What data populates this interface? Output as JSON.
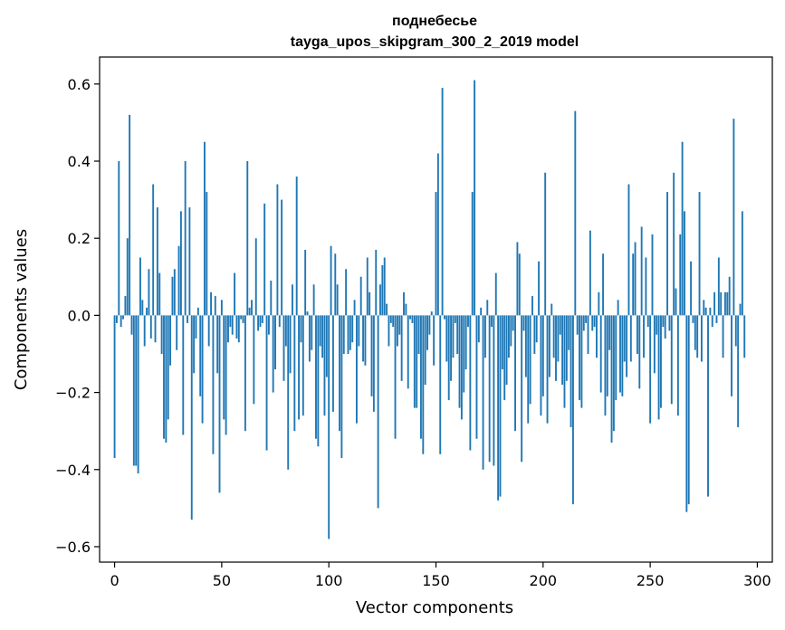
{
  "chart_data": {
    "type": "bar",
    "title_lines": [
      "поднебесье",
      "tayga_upos_skipgram_300_2_2019 model"
    ],
    "xlabel": "Vector components",
    "ylabel": "Components values",
    "xlim": [
      -7,
      307
    ],
    "ylim": [
      -0.64,
      0.67
    ],
    "x_ticks": [
      0,
      50,
      100,
      150,
      200,
      250,
      300
    ],
    "y_ticks": [
      -0.6,
      -0.4,
      -0.2,
      0.0,
      0.2,
      0.4,
      0.6
    ],
    "x_tick_labels": [
      "0",
      "50",
      "100",
      "150",
      "200",
      "250",
      "300"
    ],
    "y_tick_labels": [
      "−0.6",
      "−0.4",
      "−0.2",
      "0.0",
      "0.2",
      "0.4",
      "0.6"
    ],
    "grid": false,
    "bar_color": "#1f77b4",
    "values": [
      -0.37,
      -0.02,
      0.4,
      -0.03,
      -0.01,
      0.05,
      0.2,
      0.52,
      -0.05,
      -0.39,
      -0.39,
      -0.41,
      0.15,
      0.04,
      -0.08,
      0.02,
      0.12,
      -0.06,
      0.34,
      -0.07,
      0.28,
      0.11,
      -0.1,
      -0.32,
      -0.33,
      -0.27,
      -0.13,
      0.1,
      0.12,
      -0.09,
      0.18,
      0.27,
      -0.31,
      0.4,
      -0.02,
      0.28,
      -0.53,
      -0.15,
      -0.06,
      0.02,
      -0.21,
      -0.28,
      0.45,
      0.32,
      -0.08,
      0.06,
      -0.36,
      0.05,
      -0.15,
      -0.46,
      0.04,
      -0.27,
      -0.31,
      -0.07,
      -0.03,
      -0.05,
      0.11,
      -0.06,
      -0.07,
      -0.01,
      -0.02,
      -0.3,
      0.4,
      0.02,
      0.04,
      -0.23,
      0.2,
      -0.04,
      -0.03,
      -0.02,
      0.29,
      -0.35,
      -0.05,
      0.09,
      -0.2,
      -0.14,
      0.34,
      -0.03,
      0.3,
      -0.17,
      -0.08,
      -0.4,
      -0.15,
      0.08,
      -0.3,
      0.36,
      -0.27,
      -0.07,
      -0.26,
      0.17,
      0.01,
      -0.12,
      -0.09,
      0.08,
      -0.32,
      -0.34,
      -0.08,
      -0.11,
      -0.26,
      -0.16,
      -0.58,
      0.18,
      -0.25,
      0.16,
      0.08,
      -0.3,
      -0.37,
      -0.1,
      0.12,
      -0.1,
      -0.09,
      -0.07,
      0.04,
      -0.28,
      -0.08,
      0.1,
      -0.12,
      -0.13,
      0.15,
      0.06,
      -0.21,
      -0.25,
      0.17,
      -0.5,
      0.08,
      0.13,
      0.15,
      0.03,
      -0.08,
      -0.02,
      -0.03,
      -0.32,
      -0.08,
      -0.05,
      -0.17,
      0.06,
      0.03,
      -0.19,
      -0.01,
      -0.02,
      -0.24,
      -0.24,
      -0.1,
      -0.32,
      -0.36,
      -0.18,
      -0.09,
      -0.05,
      0.01,
      -0.13,
      0.32,
      0.42,
      -0.36,
      0.59,
      -0.01,
      -0.12,
      -0.22,
      -0.17,
      -0.11,
      -0.02,
      -0.1,
      -0.24,
      -0.27,
      -0.2,
      -0.14,
      -0.03,
      -0.35,
      0.32,
      0.61,
      -0.32,
      -0.07,
      0.02,
      -0.4,
      -0.11,
      0.04,
      -0.38,
      -0.03,
      -0.39,
      0.11,
      -0.48,
      -0.47,
      -0.14,
      -0.22,
      -0.18,
      -0.11,
      -0.08,
      -0.04,
      -0.3,
      0.19,
      0.16,
      -0.38,
      -0.04,
      -0.16,
      -0.28,
      -0.23,
      0.05,
      -0.1,
      -0.07,
      0.14,
      -0.26,
      -0.21,
      0.37,
      -0.28,
      -0.16,
      0.03,
      -0.11,
      -0.17,
      -0.12,
      -0.05,
      -0.18,
      -0.24,
      -0.17,
      -0.09,
      -0.29,
      -0.49,
      0.53,
      -0.05,
      -0.22,
      -0.24,
      -0.04,
      -0.02,
      -0.1,
      0.22,
      -0.04,
      -0.03,
      -0.11,
      0.06,
      -0.2,
      0.16,
      -0.26,
      -0.21,
      -0.09,
      -0.33,
      -0.3,
      -0.22,
      0.04,
      -0.2,
      -0.21,
      -0.12,
      -0.16,
      0.34,
      -0.12,
      0.16,
      0.19,
      -0.1,
      -0.19,
      0.23,
      -0.11,
      0.15,
      -0.03,
      -0.28,
      0.21,
      -0.15,
      -0.05,
      -0.27,
      -0.24,
      -0.03,
      -0.06,
      0.32,
      -0.04,
      -0.23,
      0.37,
      0.07,
      -0.26,
      0.21,
      0.45,
      0.27,
      -0.51,
      -0.49,
      0.14,
      -0.02,
      -0.09,
      -0.11,
      0.32,
      -0.12,
      0.04,
      0.02,
      -0.47,
      0.02,
      -0.03,
      0.06,
      -0.02,
      0.15,
      0.06,
      -0.11,
      0.06,
      0.06,
      0.1,
      -0.21,
      0.51,
      -0.08,
      -0.29,
      0.03,
      0.27,
      -0.11
    ]
  }
}
